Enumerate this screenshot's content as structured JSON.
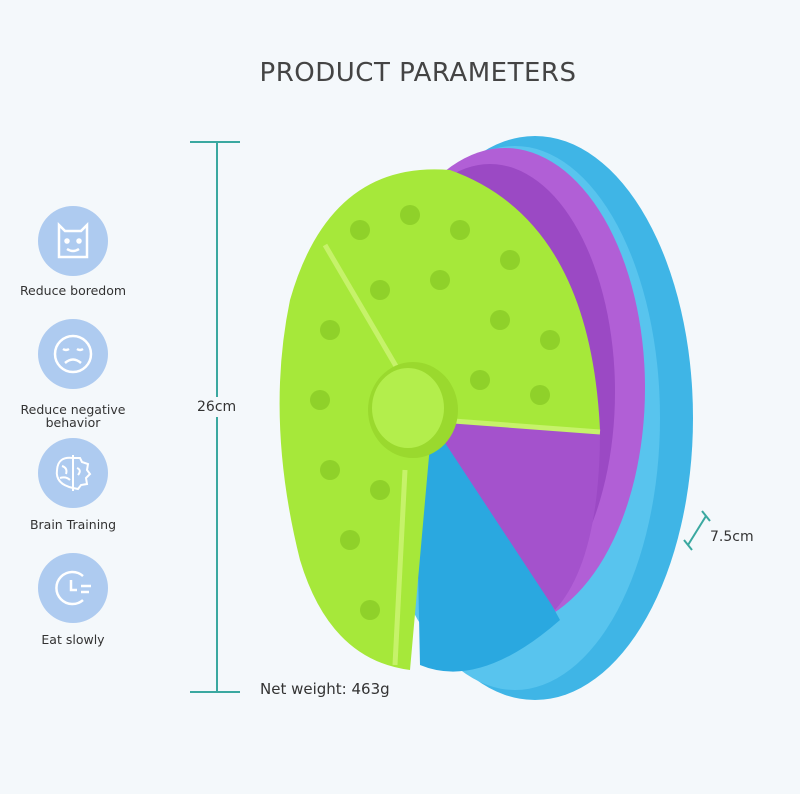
{
  "title": "PRODUCT PARAMETERS",
  "features": [
    {
      "icon": "dog-face-icon",
      "label": "Reduce boredom"
    },
    {
      "icon": "sad-face-icon",
      "label": "Reduce negative behavior"
    },
    {
      "icon": "brain-gear-icon",
      "label": "Brain Training"
    },
    {
      "icon": "clock-icon",
      "label": "Eat slowly"
    }
  ],
  "dimensions": {
    "height": "26cm",
    "thickness": "7.5cm",
    "weight": "Net weight: 463g"
  },
  "colors": {
    "accent": "#3aa8a0",
    "icon_bg": "#aecbf0",
    "green": "#a6e83a",
    "purple": "#b15fd6",
    "blue": "#3fb5e6"
  }
}
